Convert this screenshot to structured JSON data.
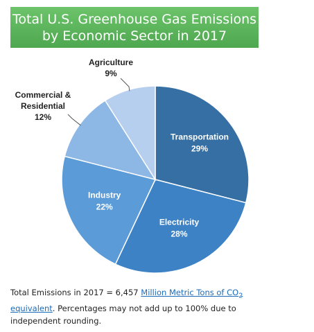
{
  "title": {
    "line1": "Total U.S. Greenhouse Gas Emissions",
    "line2": "by Economic Sector in 2017"
  },
  "colors": {
    "banner": "#58b158",
    "transportation": "#356fa3",
    "electricity": "#3d82c4",
    "industry": "#5b9bd8",
    "commercial_residential": "#8db8e6",
    "agriculture": "#b7cfee",
    "link": "#1a6bb8"
  },
  "chart_data": {
    "type": "pie",
    "title": "Total U.S. Greenhouse Gas Emissions by Economic Sector in 2017",
    "slices": [
      {
        "label": "Transportation",
        "label_lines": [
          "Transportation"
        ],
        "value": 29,
        "value_label": "29%",
        "placement": "inside"
      },
      {
        "label": "Electricity",
        "label_lines": [
          "Electricity"
        ],
        "value": 28,
        "value_label": "28%",
        "placement": "inside"
      },
      {
        "label": "Industry",
        "label_lines": [
          "Industry"
        ],
        "value": 22,
        "value_label": "22%",
        "placement": "inside"
      },
      {
        "label": "Commercial & Residential",
        "label_lines": [
          "Commercial &",
          "Residential"
        ],
        "value": 12,
        "value_label": "12%",
        "placement": "outside-left"
      },
      {
        "label": "Agriculture",
        "label_lines": [
          "Agriculture"
        ],
        "value": 9,
        "value_label": "9%",
        "placement": "outside-top"
      }
    ]
  },
  "caption": {
    "prefix": "Total Emissions in 2017 = 6,457 ",
    "link_main": "Million Metric Tons of CO",
    "link_sub": "2",
    "link_tail": " equivalent",
    "suffix": ". Percentages may not add up to 100% due to independent rounding."
  }
}
